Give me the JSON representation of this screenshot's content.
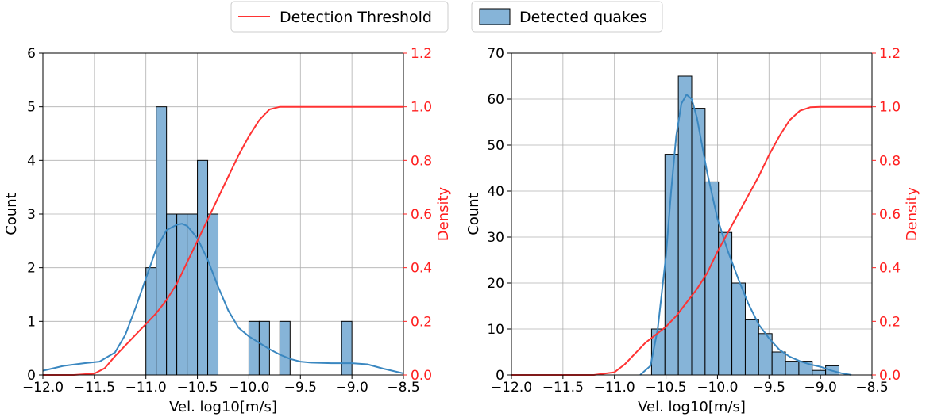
{
  "legend": {
    "position": "top-center",
    "entries": [
      {
        "label": "Detection Threshold",
        "kind": "line",
        "color": "#ff3333"
      },
      {
        "label": "Detected quakes",
        "kind": "patch",
        "color": "#86b4d8"
      }
    ]
  },
  "colors": {
    "hist_fill": "#86b4d8",
    "hist_edge": "#000000",
    "kde": "#3a87c0",
    "threshold": "#ff3333",
    "grid": "#b0b0b0"
  },
  "chart_data": [
    {
      "type": "bar",
      "subtype": "histogram_with_kde_and_cdf",
      "xlabel": "Vel. log10[m/s]",
      "ylabel": "Count",
      "ylabel_right": "Density",
      "xlim": [
        -12.0,
        -8.5
      ],
      "ylim": [
        0,
        6
      ],
      "ylim_right": [
        0,
        1.2
      ],
      "grid": true,
      "xticks": [
        -12.0,
        -11.5,
        -11.0,
        -10.5,
        -10.0,
        -9.5,
        -9.0,
        -8.5
      ],
      "xtick_labels": [
        "−12.0",
        "−11.5",
        "−11.0",
        "−10.5",
        "−10.0",
        "−9.5",
        "−9.0",
        "−8.5"
      ],
      "yticks": [
        0,
        1,
        2,
        3,
        4,
        5,
        6
      ],
      "ytick_labels": [
        "0",
        "1",
        "2",
        "3",
        "4",
        "5",
        "6"
      ],
      "yticks_right": [
        0.0,
        0.2,
        0.4,
        0.6,
        0.8,
        1.0,
        1.2
      ],
      "ytick_labels_right": [
        "0.0",
        "0.2",
        "0.4",
        "0.6",
        "0.8",
        "1.0",
        "1.2"
      ],
      "bins": [
        {
          "x0": -11.0,
          "x1": -10.9,
          "count": 2
        },
        {
          "x0": -10.9,
          "x1": -10.8,
          "count": 5
        },
        {
          "x0": -10.8,
          "x1": -10.7,
          "count": 3
        },
        {
          "x0": -10.7,
          "x1": -10.6,
          "count": 3
        },
        {
          "x0": -10.6,
          "x1": -10.5,
          "count": 3
        },
        {
          "x0": -10.5,
          "x1": -10.4,
          "count": 4
        },
        {
          "x0": -10.4,
          "x1": -10.3,
          "count": 3
        },
        {
          "x0": -10.0,
          "x1": -9.9,
          "count": 1
        },
        {
          "x0": -9.9,
          "x1": -9.8,
          "count": 1
        },
        {
          "x0": -9.7,
          "x1": -9.6,
          "count": 1
        },
        {
          "x0": -9.1,
          "x1": -9.0,
          "count": 1
        }
      ],
      "series": [
        {
          "name": "Detected quakes",
          "kind": "kde",
          "axis": "left",
          "x": [
            -12.0,
            -11.8,
            -11.6,
            -11.45,
            -11.3,
            -11.2,
            -11.1,
            -11.0,
            -10.9,
            -10.8,
            -10.7,
            -10.65,
            -10.6,
            -10.5,
            -10.4,
            -10.3,
            -10.2,
            -10.1,
            -10.0,
            -9.9,
            -9.8,
            -9.7,
            -9.6,
            -9.5,
            -9.4,
            -9.2,
            -9.0,
            -8.85,
            -8.7,
            -8.5
          ],
          "y": [
            0.08,
            0.17,
            0.22,
            0.25,
            0.42,
            0.75,
            1.25,
            1.8,
            2.35,
            2.7,
            2.8,
            2.82,
            2.78,
            2.55,
            2.15,
            1.65,
            1.2,
            0.88,
            0.72,
            0.6,
            0.48,
            0.38,
            0.3,
            0.25,
            0.23,
            0.22,
            0.22,
            0.2,
            0.12,
            0.03
          ]
        },
        {
          "name": "Detection Threshold",
          "kind": "cdf",
          "axis": "right",
          "x": [
            -12.0,
            -11.7,
            -11.5,
            -11.4,
            -11.3,
            -11.2,
            -11.1,
            -11.0,
            -10.9,
            -10.8,
            -10.7,
            -10.6,
            -10.5,
            -10.4,
            -10.3,
            -10.2,
            -10.1,
            -10.0,
            -9.9,
            -9.8,
            -9.7,
            -9.6,
            -9.5,
            -9.4,
            -9.2,
            -9.0,
            -8.5
          ],
          "y": [
            0.0,
            0.0,
            0.005,
            0.025,
            0.07,
            0.11,
            0.15,
            0.19,
            0.23,
            0.28,
            0.34,
            0.42,
            0.5,
            0.58,
            0.66,
            0.74,
            0.82,
            0.89,
            0.95,
            0.99,
            1.0,
            1.0,
            1.0,
            1.0,
            1.0,
            1.0,
            1.0
          ]
        }
      ]
    },
    {
      "type": "bar",
      "subtype": "histogram_with_kde_and_cdf",
      "xlabel": "Vel. log10[m/s]",
      "ylabel": "Count",
      "ylabel_right": "Density",
      "xlim": [
        -12.0,
        -8.5
      ],
      "ylim": [
        0,
        70
      ],
      "ylim_right": [
        0,
        1.2
      ],
      "grid": true,
      "xticks": [
        -12.0,
        -11.5,
        -11.0,
        -10.5,
        -10.0,
        -9.5,
        -9.0,
        -8.5
      ],
      "xtick_labels": [
        "−12.0",
        "−11.5",
        "−11.0",
        "−10.5",
        "−10.0",
        "−9.5",
        "−9.0",
        "−8.5"
      ],
      "yticks": [
        0,
        10,
        20,
        30,
        40,
        50,
        60,
        70
      ],
      "ytick_labels": [
        "0",
        "10",
        "20",
        "30",
        "40",
        "50",
        "60",
        "70"
      ],
      "yticks_right": [
        0.0,
        0.2,
        0.4,
        0.6,
        0.8,
        1.0,
        1.2
      ],
      "ytick_labels_right": [
        "0.0",
        "0.2",
        "0.4",
        "0.6",
        "0.8",
        "1.0",
        "1.2"
      ],
      "bins": [
        {
          "x0": -10.64,
          "x1": -10.51,
          "count": 10
        },
        {
          "x0": -10.51,
          "x1": -10.38,
          "count": 48
        },
        {
          "x0": -10.38,
          "x1": -10.25,
          "count": 65
        },
        {
          "x0": -10.25,
          "x1": -10.12,
          "count": 58
        },
        {
          "x0": -10.12,
          "x1": -9.99,
          "count": 42
        },
        {
          "x0": -9.99,
          "x1": -9.86,
          "count": 31
        },
        {
          "x0": -9.86,
          "x1": -9.73,
          "count": 20
        },
        {
          "x0": -9.73,
          "x1": -9.6,
          "count": 12
        },
        {
          "x0": -9.6,
          "x1": -9.47,
          "count": 9
        },
        {
          "x0": -9.47,
          "x1": -9.34,
          "count": 5
        },
        {
          "x0": -9.34,
          "x1": -9.21,
          "count": 3
        },
        {
          "x0": -9.21,
          "x1": -9.08,
          "count": 3
        },
        {
          "x0": -9.08,
          "x1": -8.95,
          "count": 1
        },
        {
          "x0": -8.95,
          "x1": -8.82,
          "count": 2
        }
      ],
      "series": [
        {
          "name": "Detected quakes",
          "kind": "kde",
          "axis": "left",
          "x": [
            -10.75,
            -10.65,
            -10.58,
            -10.5,
            -10.45,
            -10.4,
            -10.35,
            -10.3,
            -10.25,
            -10.2,
            -10.15,
            -10.1,
            -10.0,
            -9.9,
            -9.8,
            -9.7,
            -9.6,
            -9.5,
            -9.4,
            -9.3,
            -9.2,
            -9.1,
            -9.0,
            -8.9,
            -8.8,
            -8.7
          ],
          "y": [
            0.0,
            2.0,
            10.0,
            26.0,
            40.0,
            52.0,
            59.0,
            61.0,
            60.0,
            56.0,
            50.0,
            44.0,
            34.0,
            27.0,
            21.0,
            15.5,
            11.0,
            8.0,
            5.5,
            4.0,
            3.0,
            2.3,
            1.8,
            1.0,
            0.4,
            0.0
          ]
        },
        {
          "name": "Detection Threshold",
          "kind": "cdf",
          "axis": "right",
          "x": [
            -12.0,
            -11.2,
            -11.0,
            -10.9,
            -10.8,
            -10.7,
            -10.6,
            -10.5,
            -10.4,
            -10.3,
            -10.2,
            -10.1,
            -10.0,
            -9.9,
            -9.8,
            -9.7,
            -9.6,
            -9.5,
            -9.4,
            -9.3,
            -9.2,
            -9.1,
            -9.0,
            -8.9,
            -8.5
          ],
          "y": [
            0.0,
            0.0,
            0.01,
            0.04,
            0.08,
            0.12,
            0.15,
            0.18,
            0.22,
            0.27,
            0.32,
            0.38,
            0.46,
            0.53,
            0.6,
            0.67,
            0.74,
            0.82,
            0.89,
            0.95,
            0.985,
            0.998,
            1.0,
            1.0,
            1.0
          ]
        }
      ]
    }
  ]
}
